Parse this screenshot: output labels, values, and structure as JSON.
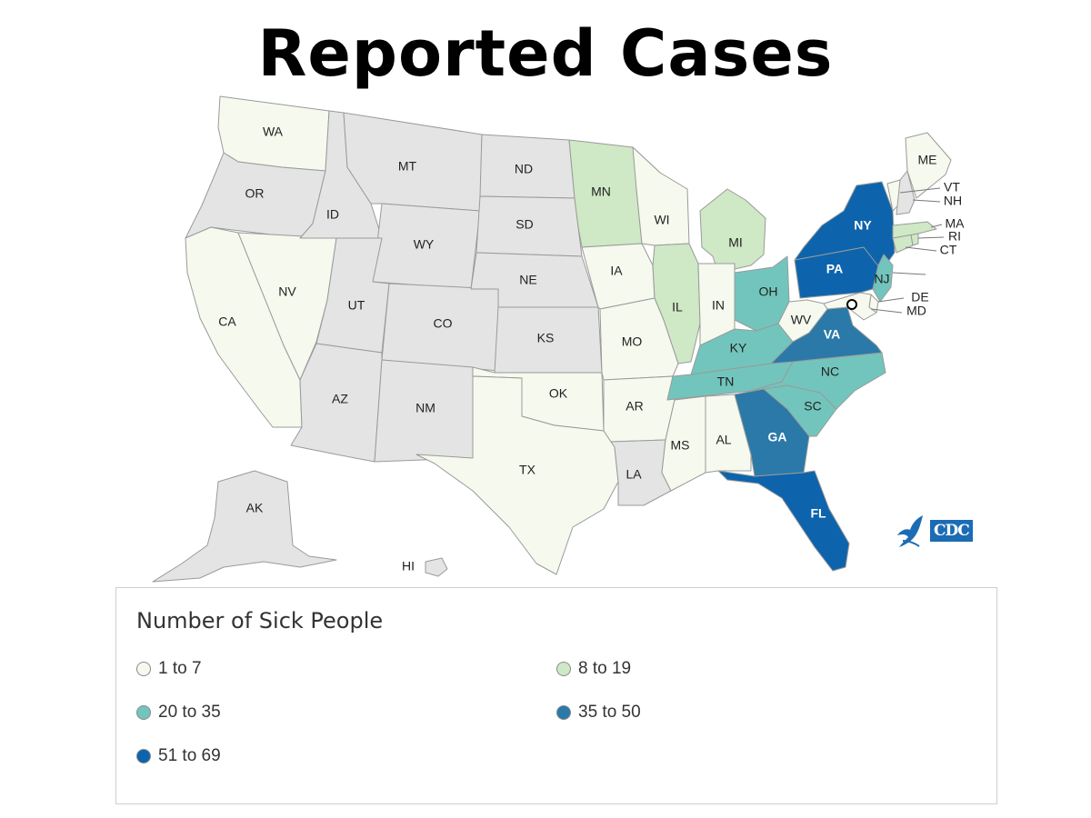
{
  "title": "Reported Cases",
  "legend": {
    "title": "Number of Sick People",
    "bins": [
      {
        "label": "1 to 7",
        "color": "#f5f9ee"
      },
      {
        "label": "8 to 19",
        "color": "#cfe8c5"
      },
      {
        "label": "20 to 35",
        "color": "#72c5bc"
      },
      {
        "label": "35 to 50",
        "color": "#2a79a8"
      },
      {
        "label": "51 to 69",
        "color": "#0d64ac"
      }
    ],
    "no_cases_color": "#e4e4e4"
  },
  "logo": {
    "text": "CDC"
  },
  "states": [
    {
      "abbr": "WA",
      "bin": 0
    },
    {
      "abbr": "OR",
      "bin": null
    },
    {
      "abbr": "CA",
      "bin": 0
    },
    {
      "abbr": "NV",
      "bin": 0
    },
    {
      "abbr": "ID",
      "bin": null
    },
    {
      "abbr": "MT",
      "bin": null
    },
    {
      "abbr": "WY",
      "bin": null
    },
    {
      "abbr": "UT",
      "bin": null
    },
    {
      "abbr": "CO",
      "bin": null
    },
    {
      "abbr": "AZ",
      "bin": null
    },
    {
      "abbr": "NM",
      "bin": null
    },
    {
      "abbr": "ND",
      "bin": null
    },
    {
      "abbr": "SD",
      "bin": null
    },
    {
      "abbr": "NE",
      "bin": null
    },
    {
      "abbr": "KS",
      "bin": null
    },
    {
      "abbr": "OK",
      "bin": 0
    },
    {
      "abbr": "TX",
      "bin": 0
    },
    {
      "abbr": "MN",
      "bin": 1
    },
    {
      "abbr": "IA",
      "bin": 0
    },
    {
      "abbr": "MO",
      "bin": 0
    },
    {
      "abbr": "AR",
      "bin": 0
    },
    {
      "abbr": "LA",
      "bin": null
    },
    {
      "abbr": "WI",
      "bin": 0
    },
    {
      "abbr": "IL",
      "bin": 1
    },
    {
      "abbr": "MI",
      "bin": 1
    },
    {
      "abbr": "IN",
      "bin": 0
    },
    {
      "abbr": "OH",
      "bin": 2
    },
    {
      "abbr": "KY",
      "bin": 2
    },
    {
      "abbr": "TN",
      "bin": 2
    },
    {
      "abbr": "MS",
      "bin": 0
    },
    {
      "abbr": "AL",
      "bin": 0
    },
    {
      "abbr": "GA",
      "bin": 3
    },
    {
      "abbr": "FL",
      "bin": 4
    },
    {
      "abbr": "SC",
      "bin": 2
    },
    {
      "abbr": "NC",
      "bin": 2
    },
    {
      "abbr": "VA",
      "bin": 3
    },
    {
      "abbr": "WV",
      "bin": 0
    },
    {
      "abbr": "PA",
      "bin": 4
    },
    {
      "abbr": "NY",
      "bin": 4
    },
    {
      "abbr": "NJ",
      "bin": 2
    },
    {
      "abbr": "DE",
      "bin": 0
    },
    {
      "abbr": "MD",
      "bin": 0
    },
    {
      "abbr": "CT",
      "bin": 1
    },
    {
      "abbr": "RI",
      "bin": 1
    },
    {
      "abbr": "MA",
      "bin": 1
    },
    {
      "abbr": "VT",
      "bin": 0
    },
    {
      "abbr": "NH",
      "bin": null
    },
    {
      "abbr": "ME",
      "bin": 0
    },
    {
      "abbr": "AK",
      "bin": null
    },
    {
      "abbr": "HI",
      "bin": null
    }
  ]
}
